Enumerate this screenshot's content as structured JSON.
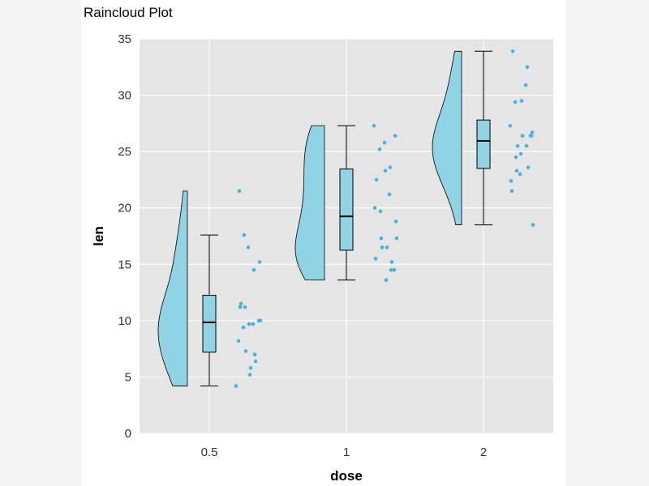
{
  "chart_data": {
    "type": "raincloud",
    "title": "Raincloud Plot",
    "xlabel": "dose",
    "ylabel": "len",
    "ylim": [
      0,
      35
    ],
    "yticks": [
      "0",
      "5",
      "10",
      "15",
      "20",
      "25",
      "30",
      "35"
    ],
    "categories": [
      "0.5",
      "1",
      "2"
    ],
    "grid": true,
    "colors": {
      "fill": "#8fd3e4",
      "point": "#3fb6dc",
      "outline": "#000000",
      "panel": "#e5e5e5",
      "grid": "#ffffff"
    },
    "groups": [
      {
        "category": "0.5",
        "box": {
          "whisker_low": 4.2,
          "q1": 7.2,
          "median": 9.85,
          "q3": 12.25,
          "whisker_high": 17.6
        },
        "points": [
          4.2,
          11.5,
          7.3,
          5.8,
          6.4,
          10.0,
          11.2,
          11.2,
          5.2,
          7.0,
          15.2,
          21.5,
          17.6,
          9.7,
          14.5,
          10.0,
          8.2,
          9.4,
          16.5,
          9.7
        ]
      },
      {
        "category": "1",
        "box": {
          "whisker_low": 13.6,
          "q1": 16.25,
          "median": 19.25,
          "q3": 23.45,
          "whisker_high": 27.3
        },
        "points": [
          16.5,
          16.5,
          15.2,
          17.3,
          22.5,
          17.3,
          13.6,
          14.5,
          18.8,
          15.5,
          19.7,
          23.3,
          23.6,
          26.4,
          20.0,
          25.2,
          25.8,
          21.2,
          14.5,
          27.3
        ]
      },
      {
        "category": "2",
        "box": {
          "whisker_low": 18.5,
          "q1": 23.5,
          "median": 25.95,
          "q3": 27.8,
          "whisker_high": 33.9
        },
        "points": [
          23.6,
          18.5,
          33.9,
          25.5,
          26.4,
          32.5,
          26.7,
          21.5,
          23.3,
          29.5,
          25.5,
          26.4,
          22.4,
          24.5,
          24.8,
          30.9,
          26.4,
          27.3,
          29.4,
          23.0
        ]
      }
    ]
  }
}
